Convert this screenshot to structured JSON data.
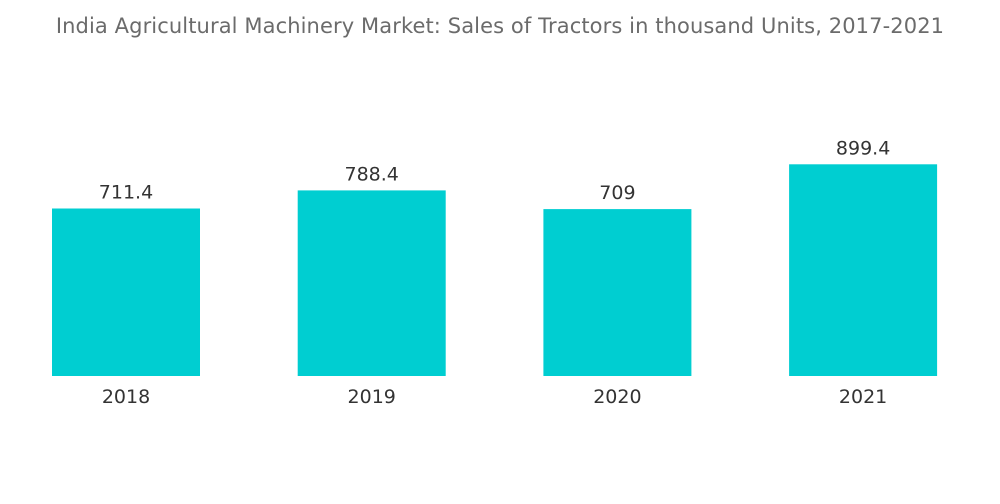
{
  "chart_data": {
    "type": "bar",
    "title": "India Agricultural Machinery Market: Sales of Tractors in thousand Units, 2017-2021",
    "categories": [
      "2018",
      "2019",
      "2020",
      "2021"
    ],
    "values": [
      711.4,
      788.4,
      709,
      899.4
    ],
    "value_labels": [
      "711.4",
      "788.4",
      "709",
      "899.4"
    ],
    "xlabel": "",
    "ylabel": "",
    "ylim": [
      0,
      1000
    ],
    "grid": false,
    "legend": "none",
    "bar_color": "#00CED1"
  }
}
